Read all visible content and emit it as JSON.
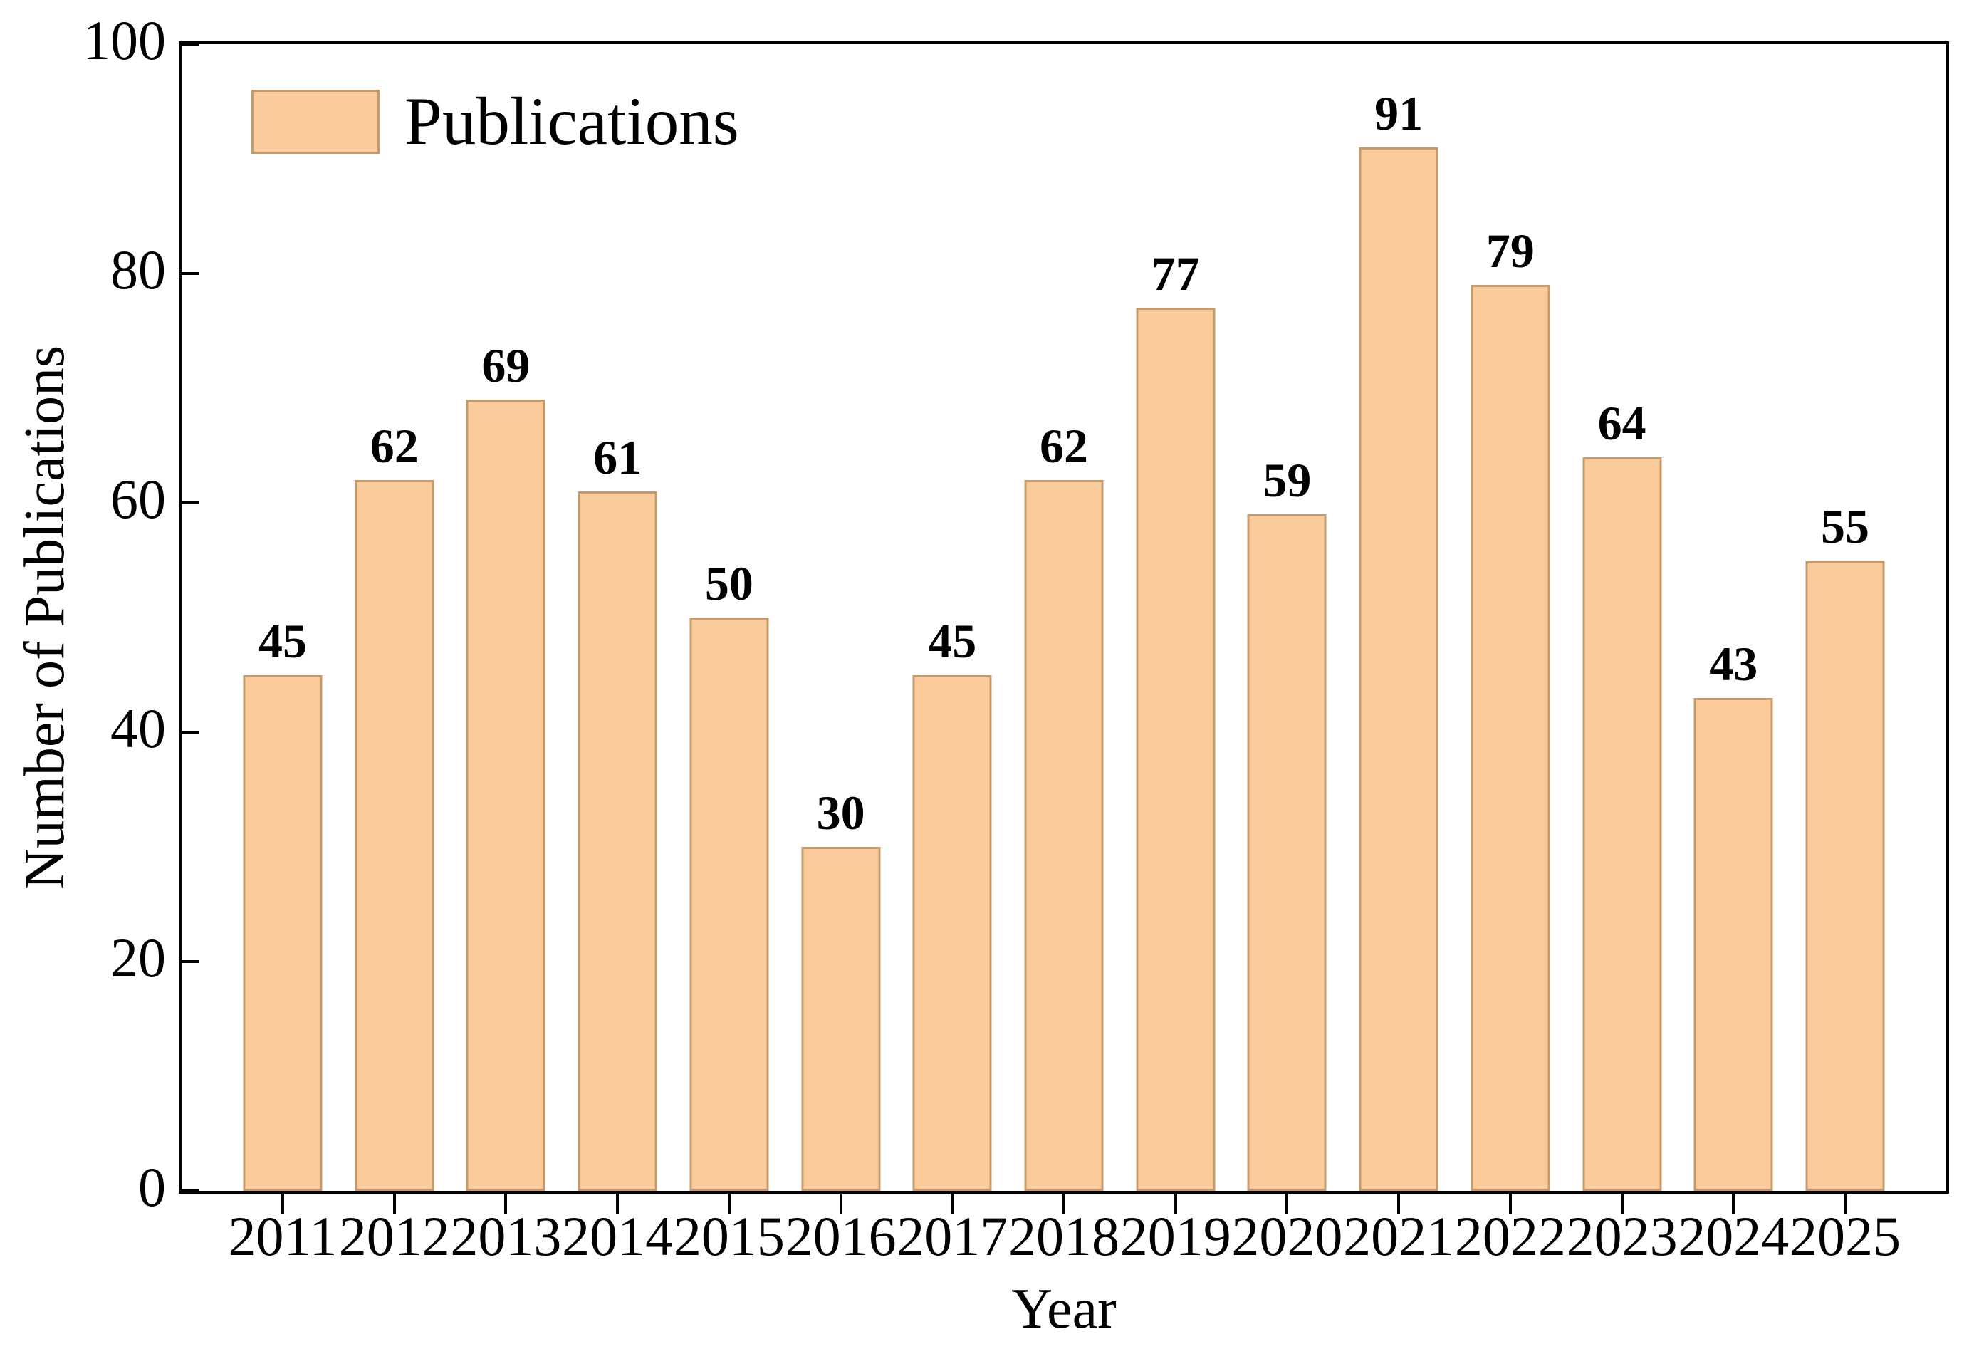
{
  "chart_data": {
    "type": "bar",
    "title": "",
    "xlabel": "Year",
    "ylabel": "Number of Publications",
    "categories": [
      "2011",
      "2012",
      "2013",
      "2014",
      "2015",
      "2016",
      "2017",
      "2018",
      "2019",
      "2020",
      "2021",
      "2022",
      "2023",
      "2024",
      "2025"
    ],
    "values": [
      45,
      62,
      69,
      61,
      50,
      30,
      45,
      62,
      77,
      59,
      91,
      79,
      64,
      43,
      55
    ],
    "ylim": [
      0,
      100
    ],
    "yticks": [
      0,
      20,
      40,
      60,
      80,
      100
    ],
    "bar_value_labels": [
      45,
      62,
      69,
      61,
      50,
      30,
      45,
      62,
      77,
      59,
      91,
      79,
      64,
      43,
      55
    ],
    "legend": {
      "label": "Publications",
      "position": "upper left",
      "frame": false
    },
    "grid": false,
    "colors": {
      "bar_fill": "#FBCB9C",
      "bar_edge": "#C69B6C",
      "axis": "#000000",
      "text": "#000000",
      "background": "#FFFFFF"
    }
  }
}
